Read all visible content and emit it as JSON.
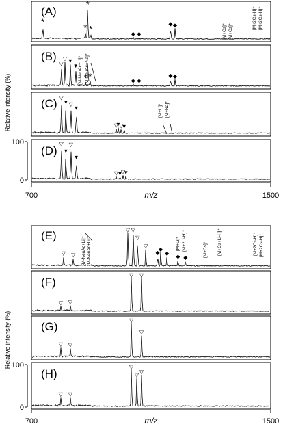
{
  "chart_data": [
    {
      "type": "line",
      "group": "top",
      "x_range": [
        700,
        1500
      ],
      "ylim": [
        0,
        100
      ],
      "xlabel": "m/z",
      "ylabel": "Relative intensity (%)",
      "x_ticks": [
        "700",
        "1500"
      ],
      "y_ticks": [
        "0",
        "100"
      ],
      "panels": [
        {
          "label": "(A)",
          "peaks": [
            [
              738,
              40
            ],
            [
              880,
              22
            ],
            [
              888,
              100
            ],
            [
              898,
              18
            ],
            [
              1040,
              8
            ],
            [
              1060,
              8
            ],
            [
              1165,
              38
            ],
            [
              1180,
              34
            ]
          ],
          "markers": [
            {
              "x": 738,
              "symbol": "*"
            },
            {
              "x": 880,
              "symbol": "*"
            },
            {
              "x": 888,
              "symbol": "*"
            },
            {
              "x": 898,
              "symbol": "*"
            },
            {
              "x": 1040,
              "symbol": "◆"
            },
            {
              "x": 1060,
              "symbol": "◆"
            },
            {
              "x": 1165,
              "symbol": "◆"
            },
            {
              "x": 1180,
              "symbol": "◆"
            }
          ],
          "annotations": [
            "[M+Cs]⁺",
            "[M+Cs]⁺",
            "[M+2Cs-H]⁺",
            "[M+2Cs-H]⁺"
          ]
        },
        {
          "label": "(B)",
          "peaks": [
            [
              800,
              55
            ],
            [
              812,
              68
            ],
            [
              830,
              62
            ],
            [
              848,
              48
            ],
            [
              880,
              15
            ],
            [
              896,
              17
            ],
            [
              1040,
              8
            ],
            [
              1060,
              8
            ],
            [
              1165,
              22
            ],
            [
              1180,
              20
            ]
          ],
          "markers": [
            {
              "x": 800,
              "symbol": "▽"
            },
            {
              "x": 812,
              "symbol": "▽"
            },
            {
              "x": 830,
              "symbol": "▼"
            },
            {
              "x": 848,
              "symbol": "▼"
            },
            {
              "x": 880,
              "symbol": "*"
            },
            {
              "x": 896,
              "symbol": "*"
            },
            {
              "x": 1040,
              "symbol": "◆"
            },
            {
              "x": 1060,
              "symbol": "◆"
            },
            {
              "x": 1165,
              "symbol": "◆"
            },
            {
              "x": 1180,
              "symbol": "◆"
            }
          ],
          "annotations": [
            "[M-NeuAc+Li]⁺",
            "[M-NeuAc+Na]⁺"
          ]
        },
        {
          "label": "(C)",
          "peaks": [
            [
              800,
              90
            ],
            [
              815,
              78
            ],
            [
              832,
              72
            ],
            [
              850,
              62
            ],
            [
              983,
              15
            ],
            [
              990,
              18
            ],
            [
              1000,
              14
            ],
            [
              1010,
              12
            ]
          ],
          "markers": [
            {
              "x": 800,
              "symbol": "▽"
            },
            {
              "x": 815,
              "symbol": "▼"
            },
            {
              "x": 832,
              "symbol": "▽"
            },
            {
              "x": 850,
              "symbol": "▼"
            },
            {
              "x": 983,
              "symbol": "▽"
            },
            {
              "x": 990,
              "symbol": "▼"
            },
            {
              "x": 1000,
              "symbol": "▽"
            },
            {
              "x": 1010,
              "symbol": "▼"
            }
          ],
          "annotations": [
            "[M+Li]⁺",
            "[M+Na]⁺"
          ]
        },
        {
          "label": "(D)",
          "peaks": [
            [
              800,
              92
            ],
            [
              815,
              72
            ],
            [
              832,
              90
            ],
            [
              850,
              55
            ],
            [
              983,
              10
            ],
            [
              996,
              9
            ],
            [
              1006,
              13
            ],
            [
              1016,
              12
            ]
          ],
          "markers": [
            {
              "x": 800,
              "symbol": "▽"
            },
            {
              "x": 815,
              "symbol": "▼"
            },
            {
              "x": 832,
              "symbol": "▽"
            },
            {
              "x": 850,
              "symbol": "▼"
            },
            {
              "x": 983,
              "symbol": "▽"
            },
            {
              "x": 996,
              "symbol": "▼"
            },
            {
              "x": 1006,
              "symbol": "▽"
            },
            {
              "x": 1016,
              "symbol": "▼"
            }
          ],
          "annotations": []
        }
      ]
    },
    {
      "type": "line",
      "group": "bottom",
      "x_range": [
        700,
        1500
      ],
      "ylim": [
        0,
        100
      ],
      "xlabel": "m/z",
      "ylabel": "Relative intensity (%)",
      "x_ticks": [
        "700",
        "1500"
      ],
      "y_ticks": [
        "0",
        "100"
      ],
      "panels": [
        {
          "label": "(E)",
          "peaks": [
            [
              807,
              28
            ],
            [
              840,
              24
            ],
            [
              1022,
              96
            ],
            [
              1040,
              100
            ],
            [
              1055,
              72
            ],
            [
              1082,
              48
            ],
            [
              1122,
              30
            ],
            [
              1132,
              40
            ],
            [
              1153,
              28
            ],
            [
              1190,
              20
            ],
            [
              1215,
              17
            ]
          ],
          "markers": [
            {
              "x": 807,
              "symbol": "▽"
            },
            {
              "x": 840,
              "symbol": "▽"
            },
            {
              "x": 1022,
              "symbol": "▽"
            },
            {
              "x": 1040,
              "symbol": "▽"
            },
            {
              "x": 1055,
              "symbol": "▽"
            },
            {
              "x": 1082,
              "symbol": "▽"
            },
            {
              "x": 1122,
              "symbol": "◆"
            },
            {
              "x": 1132,
              "symbol": "◆"
            },
            {
              "x": 1153,
              "symbol": "◆"
            },
            {
              "x": 1190,
              "symbol": "◆"
            },
            {
              "x": 1215,
              "symbol": "◆"
            }
          ],
          "annotations": [
            "[M-NeuAc+Li]⁺",
            "[M-NeuAc+Li]⁺",
            "[M+Li]⁺",
            "[M+2Li-H]⁺",
            "[M+Cs]⁺",
            "[M+Cs+Li-H]⁺",
            "[M+2Cs-H]⁺",
            "[M+2Cs-H]⁺"
          ]
        },
        {
          "label": "(F)",
          "peaks": [
            [
              798,
              16
            ],
            [
              830,
              18
            ],
            [
              1034,
              100
            ],
            [
              1068,
              98
            ]
          ],
          "markers": [
            {
              "x": 798,
              "symbol": "▽"
            },
            {
              "x": 830,
              "symbol": "▽"
            },
            {
              "x": 1034,
              "symbol": "▽"
            },
            {
              "x": 1068,
              "symbol": "▽"
            }
          ],
          "annotations": []
        },
        {
          "label": "(G)",
          "peaks": [
            [
              798,
              28
            ],
            [
              830,
              26
            ],
            [
              1034,
              100
            ],
            [
              1068,
              60
            ]
          ],
          "markers": [
            {
              "x": 798,
              "symbol": "▽"
            },
            {
              "x": 830,
              "symbol": "▽"
            },
            {
              "x": 1034,
              "symbol": "▽"
            },
            {
              "x": 1068,
              "symbol": "▽"
            }
          ],
          "annotations": []
        },
        {
          "label": "(H)",
          "peaks": [
            [
              798,
              24
            ],
            [
              830,
              24
            ],
            [
              1034,
              100
            ],
            [
              1052,
              72
            ],
            [
              1068,
              80
            ]
          ],
          "markers": [
            {
              "x": 798,
              "symbol": "▽"
            },
            {
              "x": 830,
              "symbol": "▽"
            },
            {
              "x": 1034,
              "symbol": "▽"
            },
            {
              "x": 1052,
              "symbol": "▽"
            },
            {
              "x": 1068,
              "symbol": "▽"
            }
          ],
          "annotations": []
        }
      ]
    }
  ]
}
